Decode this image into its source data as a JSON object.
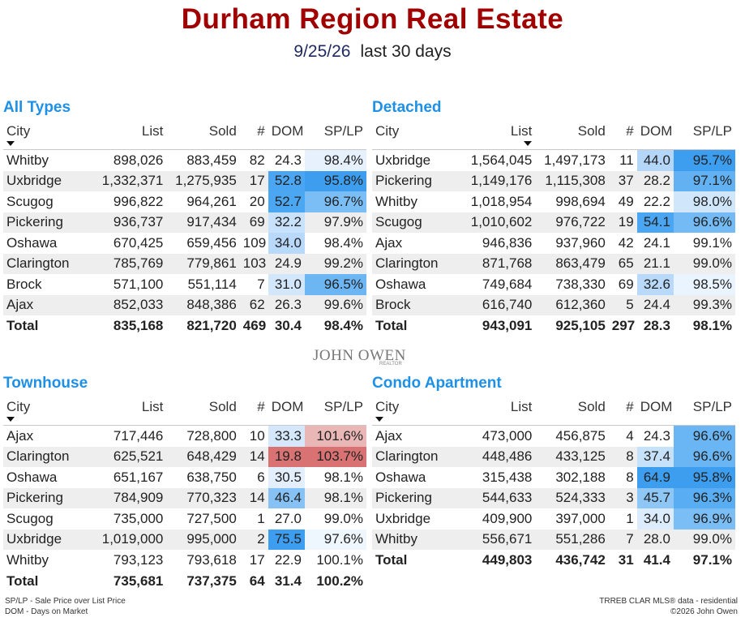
{
  "header": {
    "title": "Durham Region Real Estate",
    "date": "9/25/26",
    "period": "last 30 days"
  },
  "columns": [
    "City",
    "List",
    "Sold",
    "#",
    "DOM",
    "SP/LP"
  ],
  "panels": [
    {
      "title": "All Types",
      "sort_col": 0,
      "rows": [
        {
          "city": "Whitby",
          "list": "898,026",
          "sold": "883,459",
          "n": "82",
          "dom": "24.3",
          "splp": "98.4%",
          "dom_bg": "",
          "splp_bg": "#e6f1fd"
        },
        {
          "city": "Uxbridge",
          "list": "1,332,371",
          "sold": "1,275,935",
          "n": "17",
          "dom": "52.8",
          "splp": "95.8%",
          "dom_bg": "#4aa6f2",
          "splp_bg": "#3d9ef0"
        },
        {
          "city": "Scugog",
          "list": "996,822",
          "sold": "964,261",
          "n": "20",
          "dom": "52.7",
          "splp": "96.7%",
          "dom_bg": "#4ca7f2",
          "splp_bg": "#7bbdf5"
        },
        {
          "city": "Pickering",
          "list": "936,737",
          "sold": "917,434",
          "n": "69",
          "dom": "32.2",
          "splp": "97.9%",
          "dom_bg": "#c9e2fb",
          "splp_bg": ""
        },
        {
          "city": "Oshawa",
          "list": "670,425",
          "sold": "659,456",
          "n": "109",
          "dom": "34.0",
          "splp": "98.4%",
          "dom_bg": "#b8d9fa",
          "splp_bg": ""
        },
        {
          "city": "Clarington",
          "list": "785,769",
          "sold": "779,861",
          "n": "103",
          "dom": "24.9",
          "splp": "99.2%",
          "dom_bg": "",
          "splp_bg": ""
        },
        {
          "city": "Brock",
          "list": "571,100",
          "sold": "551,114",
          "n": "7",
          "dom": "31.0",
          "splp": "96.5%",
          "dom_bg": "#d2e7fb",
          "splp_bg": "#6cb6f4"
        },
        {
          "city": "Ajax",
          "list": "852,033",
          "sold": "848,386",
          "n": "62",
          "dom": "26.3",
          "splp": "99.6%",
          "dom_bg": "",
          "splp_bg": ""
        }
      ],
      "total": {
        "city": "Total",
        "list": "835,168",
        "sold": "821,720",
        "n": "469",
        "dom": "30.4",
        "splp": "98.4%"
      }
    },
    {
      "title": "Detached",
      "sort_col": 1,
      "rows": [
        {
          "city": "Uxbridge",
          "list": "1,564,045",
          "sold": "1,497,173",
          "n": "11",
          "dom": "44.0",
          "splp": "95.7%",
          "dom_bg": "#b3d6f9",
          "splp_bg": "#3d9ef0"
        },
        {
          "city": "Pickering",
          "list": "1,149,176",
          "sold": "1,115,308",
          "n": "37",
          "dom": "28.2",
          "splp": "97.1%",
          "dom_bg": "",
          "splp_bg": "#62b1f3"
        },
        {
          "city": "Whitby",
          "list": "1,018,954",
          "sold": "998,694",
          "n": "49",
          "dom": "22.2",
          "splp": "98.0%",
          "dom_bg": "",
          "splp_bg": "#cfe6fb"
        },
        {
          "city": "Scugog",
          "list": "1,010,602",
          "sold": "976,722",
          "n": "19",
          "dom": "54.1",
          "splp": "96.6%",
          "dom_bg": "#4aa6f2",
          "splp_bg": "#74baf5"
        },
        {
          "city": "Ajax",
          "list": "946,836",
          "sold": "937,960",
          "n": "42",
          "dom": "24.1",
          "splp": "99.1%",
          "dom_bg": "",
          "splp_bg": ""
        },
        {
          "city": "Clarington",
          "list": "871,768",
          "sold": "863,479",
          "n": "65",
          "dom": "21.1",
          "splp": "99.0%",
          "dom_bg": "",
          "splp_bg": ""
        },
        {
          "city": "Oshawa",
          "list": "749,684",
          "sold": "738,330",
          "n": "69",
          "dom": "32.6",
          "splp": "98.5%",
          "dom_bg": "#b8d9fa",
          "splp_bg": "#eaf4fe"
        },
        {
          "city": "Brock",
          "list": "616,740",
          "sold": "612,360",
          "n": "5",
          "dom": "24.4",
          "splp": "99.3%",
          "dom_bg": "",
          "splp_bg": ""
        }
      ],
      "total": {
        "city": "Total",
        "list": "943,091",
        "sold": "925,105",
        "n": "297",
        "dom": "28.3",
        "splp": "98.1%"
      }
    },
    {
      "title": "Townhouse",
      "sort_col": 0,
      "rows": [
        {
          "city": "Ajax",
          "list": "717,446",
          "sold": "728,800",
          "n": "10",
          "dom": "33.3",
          "splp": "101.6%",
          "dom_bg": "#d5e8fb",
          "splp_bg": "#eab7b7"
        },
        {
          "city": "Clarington",
          "list": "625,521",
          "sold": "648,429",
          "n": "14",
          "dom": "19.8",
          "splp": "103.7%",
          "dom_bg": "#d97272",
          "splp_bg": "#d97272"
        },
        {
          "city": "Oshawa",
          "list": "651,167",
          "sold": "638,750",
          "n": "6",
          "dom": "30.5",
          "splp": "98.1%",
          "dom_bg": "#e3effd",
          "splp_bg": ""
        },
        {
          "city": "Pickering",
          "list": "784,909",
          "sold": "770,323",
          "n": "14",
          "dom": "46.4",
          "splp": "98.1%",
          "dom_bg": "#86c2f6",
          "splp_bg": ""
        },
        {
          "city": "Scugog",
          "list": "735,000",
          "sold": "727,500",
          "n": "1",
          "dom": "27.0",
          "splp": "99.0%",
          "dom_bg": "",
          "splp_bg": ""
        },
        {
          "city": "Uxbridge",
          "list": "1,019,000",
          "sold": "995,000",
          "n": "2",
          "dom": "75.5",
          "splp": "97.6%",
          "dom_bg": "#3d9ef0",
          "splp_bg": "#eef6fe"
        },
        {
          "city": "Whitby",
          "list": "793,123",
          "sold": "793,618",
          "n": "17",
          "dom": "22.9",
          "splp": "100.1%",
          "dom_bg": "",
          "splp_bg": ""
        }
      ],
      "total": {
        "city": "Total",
        "list": "735,681",
        "sold": "737,375",
        "n": "64",
        "dom": "31.4",
        "splp": "100.2%"
      }
    },
    {
      "title": "Condo Apartment",
      "sort_col": 0,
      "rows": [
        {
          "city": "Ajax",
          "list": "473,000",
          "sold": "456,875",
          "n": "4",
          "dom": "24.3",
          "splp": "96.6%",
          "dom_bg": "",
          "splp_bg": "#6ab5f4"
        },
        {
          "city": "Clarington",
          "list": "448,486",
          "sold": "433,125",
          "n": "8",
          "dom": "37.4",
          "splp": "96.6%",
          "dom_bg": "#c6e1fa",
          "splp_bg": "#6ab5f4"
        },
        {
          "city": "Oshawa",
          "list": "315,438",
          "sold": "302,188",
          "n": "8",
          "dom": "64.9",
          "splp": "95.8%",
          "dom_bg": "#3d9ef0",
          "splp_bg": "#3d9ef0"
        },
        {
          "city": "Pickering",
          "list": "544,633",
          "sold": "524,333",
          "n": "3",
          "dom": "45.7",
          "splp": "96.3%",
          "dom_bg": "#8ec6f6",
          "splp_bg": "#58adf3"
        },
        {
          "city": "Uxbridge",
          "list": "409,900",
          "sold": "397,000",
          "n": "1",
          "dom": "34.0",
          "splp": "96.9%",
          "dom_bg": "#dcecfc",
          "splp_bg": "#7bbdf5"
        },
        {
          "city": "Whitby",
          "list": "556,671",
          "sold": "551,286",
          "n": "7",
          "dom": "28.0",
          "splp": "99.0%",
          "dom_bg": "",
          "splp_bg": ""
        }
      ],
      "total": {
        "city": "Total",
        "list": "449,803",
        "sold": "436,742",
        "n": "31",
        "dom": "41.4",
        "splp": "97.1%"
      }
    }
  ],
  "logo": {
    "name": "JOHN OWEN",
    "sub": "REALTOR"
  },
  "footer": {
    "left": [
      "SP/LP - Sale Price over List Price",
      "DOM - Days on Market"
    ],
    "right": [
      "TRREB CLAR MLS® data - residential",
      "©2026 John Owen"
    ]
  }
}
